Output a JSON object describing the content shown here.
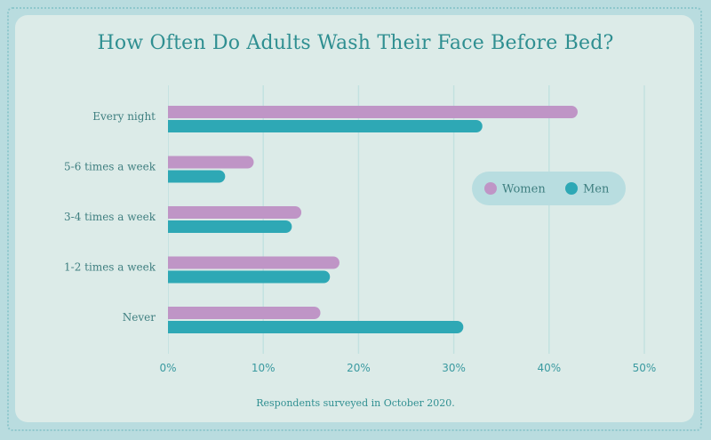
{
  "chart_data": {
    "type": "bar",
    "orientation": "horizontal",
    "title": "How Often Do Adults Wash Their Face Before Bed?",
    "note": "Respondents surveyed in October 2020.",
    "categories": [
      "Every night",
      "5-6 times a week",
      "3-4 times a week",
      "1-2  times a week",
      "Never"
    ],
    "series": [
      {
        "name": "Women",
        "color": "#bf95c6",
        "values": [
          43,
          9,
          14,
          18,
          16
        ]
      },
      {
        "name": "Men",
        "color": "#2ea8b5",
        "values": [
          33,
          6,
          13,
          17,
          31
        ]
      }
    ],
    "xlim": [
      0,
      50
    ],
    "xticks": [
      {
        "value": 0,
        "label": "0%"
      },
      {
        "value": 10,
        "label": "10%"
      },
      {
        "value": 20,
        "label": "20%"
      },
      {
        "value": 30,
        "label": "30%"
      },
      {
        "value": 40,
        "label": "40%"
      },
      {
        "value": 50,
        "label": "50%"
      }
    ],
    "grid": true,
    "legend_position": "right"
  }
}
